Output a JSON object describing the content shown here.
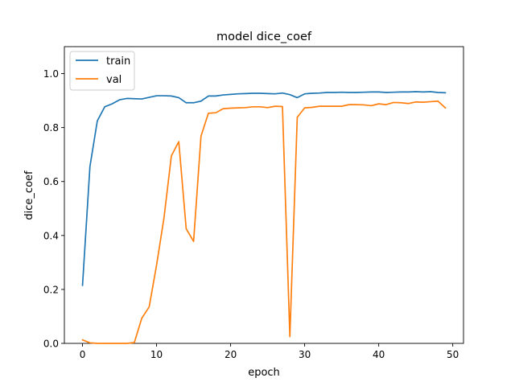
{
  "chart_data": {
    "type": "line",
    "title": "model dice_coef",
    "xlabel": "epoch",
    "ylabel": "dice_coef",
    "xlim": [
      -2.45,
      51.45
    ],
    "ylim": [
      0.0,
      1.1
    ],
    "xticks": [
      0,
      10,
      20,
      30,
      40,
      50
    ],
    "yticks": [
      0.0,
      0.2,
      0.4,
      0.6,
      0.8,
      1.0
    ],
    "xtick_labels": [
      "0",
      "10",
      "20",
      "30",
      "40",
      "50"
    ],
    "ytick_labels": [
      "0.0",
      "0.2",
      "0.4",
      "0.6",
      "0.8",
      "1.0"
    ],
    "grid": false,
    "legend_position": "upper-left",
    "x": [
      0,
      1,
      2,
      3,
      4,
      5,
      6,
      7,
      8,
      9,
      10,
      11,
      12,
      13,
      14,
      15,
      16,
      17,
      18,
      19,
      20,
      21,
      22,
      23,
      24,
      25,
      26,
      27,
      28,
      29,
      30,
      31,
      32,
      33,
      34,
      35,
      36,
      37,
      38,
      39,
      40,
      41,
      42,
      43,
      44,
      45,
      46,
      47,
      48,
      49
    ],
    "series": [
      {
        "name": "train",
        "color": "#1f77b4",
        "values": [
          0.215,
          0.655,
          0.825,
          0.877,
          0.888,
          0.903,
          0.908,
          0.907,
          0.906,
          0.912,
          0.918,
          0.918,
          0.917,
          0.911,
          0.892,
          0.892,
          0.898,
          0.917,
          0.917,
          0.921,
          0.923,
          0.925,
          0.926,
          0.927,
          0.927,
          0.926,
          0.925,
          0.928,
          0.922,
          0.911,
          0.925,
          0.927,
          0.928,
          0.93,
          0.93,
          0.931,
          0.93,
          0.93,
          0.931,
          0.932,
          0.932,
          0.93,
          0.931,
          0.932,
          0.932,
          0.933,
          0.932,
          0.933,
          0.93,
          0.929
        ]
      },
      {
        "name": "val",
        "color": "#ff7f0e",
        "values": [
          0.013,
          0.002,
          0.0,
          0.0,
          0.0,
          0.0,
          0.0,
          0.003,
          0.093,
          0.135,
          0.29,
          0.465,
          0.695,
          0.748,
          0.425,
          0.378,
          0.768,
          0.853,
          0.855,
          0.87,
          0.872,
          0.873,
          0.874,
          0.877,
          0.877,
          0.874,
          0.879,
          0.878,
          0.025,
          0.838,
          0.873,
          0.875,
          0.879,
          0.879,
          0.879,
          0.879,
          0.885,
          0.885,
          0.884,
          0.881,
          0.888,
          0.885,
          0.893,
          0.892,
          0.889,
          0.895,
          0.894,
          0.896,
          0.898,
          0.873
        ]
      }
    ]
  }
}
